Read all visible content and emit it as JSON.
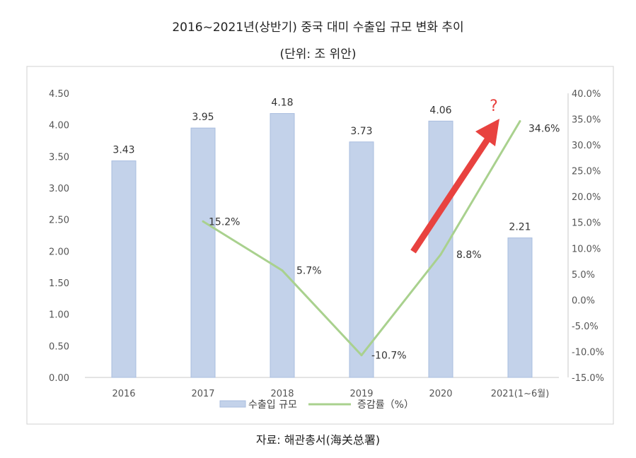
{
  "title": "2016~2021년(상반기) 중국 대미 수출입 규모 변화 추이",
  "subtitle": "(단위: 조 위안)",
  "source": "자료: 해관총서(海关总署)",
  "colors": {
    "bar": "#c3d2ea",
    "bar_edge": "#a9bddf",
    "line": "#a9d18e",
    "arrow": "#e8423f",
    "question": "#e8423f"
  },
  "chart_data": {
    "type": "bar",
    "categories": [
      "2016",
      "2017",
      "2018",
      "2019",
      "2020",
      "2021(1~6월)"
    ],
    "series": [
      {
        "name": "수출입 규모",
        "type": "bar",
        "axis": "left",
        "values": [
          3.43,
          3.95,
          4.18,
          3.73,
          4.06,
          2.21
        ],
        "labels": [
          "3.43",
          "3.95",
          "4.18",
          "3.73",
          "4.06",
          "2.21"
        ]
      },
      {
        "name": "증감률（%）",
        "type": "line",
        "axis": "right",
        "values": [
          null,
          15.2,
          5.7,
          -10.7,
          8.8,
          34.6
        ],
        "labels": [
          "",
          "15.2%",
          "5.7%",
          "-10.7%",
          "8.8%",
          "34.6%"
        ]
      }
    ],
    "y_left": {
      "ticks": [
        "0.00",
        "0.50",
        "1.00",
        "1.50",
        "2.00",
        "2.50",
        "3.00",
        "3.50",
        "4.00",
        "4.50"
      ],
      "range": [
        0,
        4.5
      ]
    },
    "y_right": {
      "ticks": [
        "-15.0%",
        "-10.0%",
        "-5.0%",
        "0.0%",
        "5.0%",
        "10.0%",
        "15.0%",
        "20.0%",
        "25.0%",
        "30.0%",
        "35.0%",
        "40.0%"
      ],
      "range": [
        -15,
        40
      ]
    },
    "legend_position": "bottom",
    "annotations": [
      {
        "text": "?"
      }
    ],
    "grid": false
  }
}
